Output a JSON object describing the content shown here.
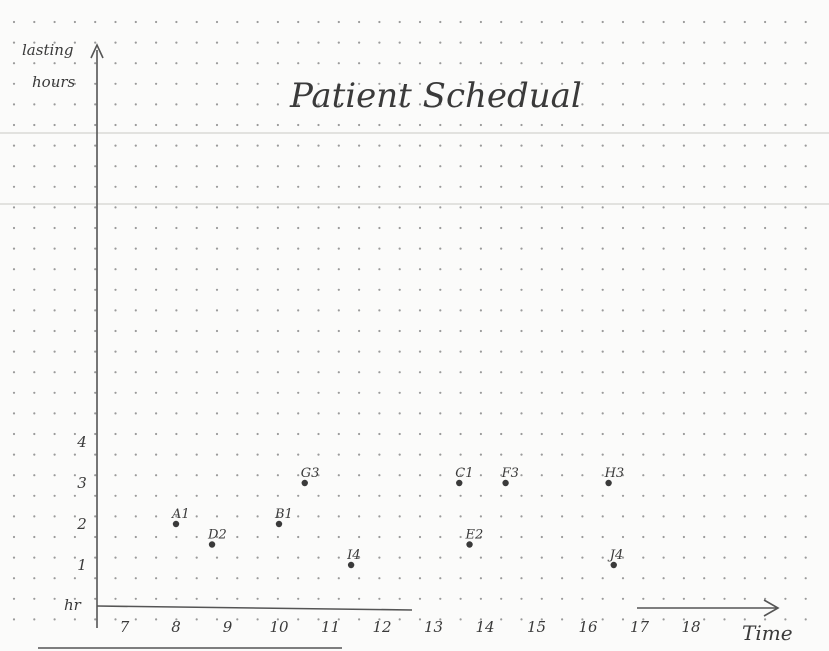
{
  "chart_data": {
    "type": "scatter",
    "title": "Patient Schedual",
    "ylabel_line1": "lasting",
    "ylabel_line2": "hours",
    "xlabel": "Time",
    "y_unit_label": "hr",
    "x_ticks": [
      "7",
      "8",
      "9",
      "10",
      "11",
      "12",
      "13",
      "14",
      "15",
      "16",
      "17",
      "18"
    ],
    "y_ticks": [
      "1",
      "2",
      "3",
      "4"
    ],
    "xlim": [
      6.4,
      18.8
    ],
    "ylim": [
      0,
      4
    ],
    "grid": "dot",
    "legend": "none",
    "points": [
      {
        "label": "A1",
        "x": 8.0,
        "y": 2
      },
      {
        "label": "D2",
        "x": 8.7,
        "y": 1.5
      },
      {
        "label": "B1",
        "x": 10.0,
        "y": 2
      },
      {
        "label": "G3",
        "x": 10.5,
        "y": 3
      },
      {
        "label": "I4",
        "x": 11.4,
        "y": 1
      },
      {
        "label": "C1",
        "x": 13.5,
        "y": 3
      },
      {
        "label": "E2",
        "x": 13.7,
        "y": 1.5
      },
      {
        "label": "F3",
        "x": 14.4,
        "y": 3
      },
      {
        "label": "H3",
        "x": 16.4,
        "y": 3
      },
      {
        "label": "J4",
        "x": 16.5,
        "y": 1
      }
    ]
  },
  "colors": {
    "paper": "#fbfbfa",
    "ink": "#3a3a3a",
    "grid_dot": "#9a9a9a",
    "rule": "#d9d9d6"
  }
}
